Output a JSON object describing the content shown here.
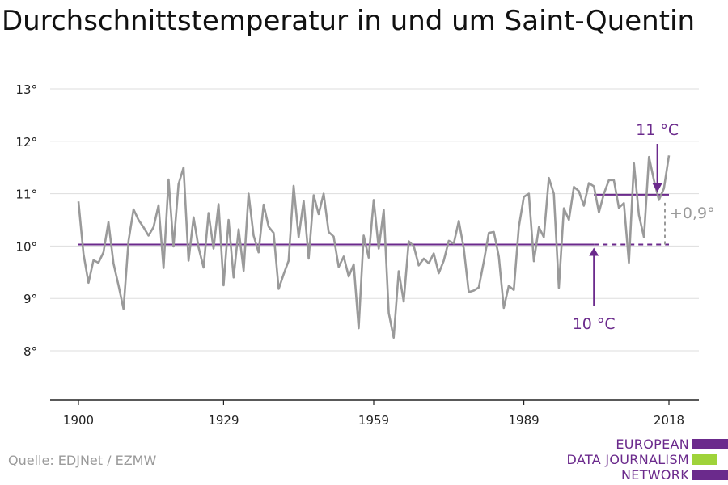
{
  "title": "Durchschnittstemperatur in und um Saint-Quentin",
  "source": "Quelle: EDJNet / EZMW",
  "logo": {
    "line1": "EUROPEAN",
    "line2": "DATA JOURNALISM",
    "line3": "NETWORK"
  },
  "colors": {
    "series": "#9a9a9a",
    "reference": "#6b2a8c",
    "grid": "#dddddd",
    "axis": "#222222",
    "logo_green": "#9fd33a"
  },
  "chart_data": {
    "type": "line",
    "title": "Durchschnittstemperatur in und um Saint-Quentin",
    "xlabel": "",
    "ylabel": "",
    "xlim": [
      1900,
      2018
    ],
    "ylim": [
      7,
      13
    ],
    "xticks": [
      1900,
      1929,
      1959,
      1989,
      2018
    ],
    "yticks": [
      8,
      9,
      10,
      11,
      12,
      13
    ],
    "xtick_labels": [
      "1900",
      "1929",
      "1959",
      "1989",
      "2018"
    ],
    "ytick_labels": [
      "8°",
      "9°",
      "10°",
      "11°",
      "12°",
      "13°"
    ],
    "grid": true,
    "series": [
      {
        "x": [
          1900,
          1901,
          1902,
          1903,
          1904,
          1905,
          1906,
          1907,
          1908,
          1909,
          1910,
          1911,
          1912,
          1913,
          1914,
          1915,
          1916,
          1917,
          1918,
          1919,
          1920,
          1921,
          1922,
          1923,
          1924,
          1925,
          1926,
          1927,
          1928,
          1929,
          1930,
          1931,
          1932,
          1933,
          1934,
          1935,
          1936,
          1937,
          1938,
          1939,
          1940,
          1941,
          1942,
          1943,
          1944,
          1945,
          1946,
          1947,
          1948,
          1949,
          1950,
          1951,
          1952,
          1953,
          1954,
          1955,
          1956,
          1957,
          1958,
          1959,
          1960,
          1961,
          1962,
          1963,
          1964,
          1965,
          1966,
          1967,
          1968,
          1969,
          1970,
          1971,
          1972,
          1973,
          1974,
          1975,
          1976,
          1977,
          1978,
          1979,
          1980,
          1981,
          1982,
          1983,
          1984,
          1985,
          1986,
          1987,
          1988,
          1989,
          1990,
          1991,
          1992,
          1993,
          1994,
          1995,
          1996,
          1997,
          1998,
          1999,
          2000,
          2001,
          2002,
          2003,
          2004,
          2005,
          2006,
          2007,
          2008,
          2009,
          2010,
          2011,
          2012,
          2013,
          2014,
          2015,
          2016,
          2017,
          2018
        ],
        "values": [
          10.85,
          9.85,
          9.3,
          9.73,
          9.68,
          9.88,
          10.46,
          9.67,
          9.25,
          8.8,
          10.1,
          10.7,
          10.5,
          10.36,
          10.2,
          10.36,
          10.78,
          9.58,
          11.27,
          9.99,
          11.18,
          11.5,
          9.72,
          10.55,
          9.97,
          9.59,
          10.63,
          9.95,
          10.8,
          9.25,
          10.5,
          9.4,
          10.32,
          9.53,
          11.0,
          10.2,
          9.88,
          10.79,
          10.37,
          10.25,
          9.18,
          9.46,
          9.72,
          11.15,
          10.17,
          10.86,
          9.76,
          10.97,
          10.61,
          11.0,
          10.27,
          10.18,
          9.6,
          9.8,
          9.42,
          9.65,
          8.43,
          10.2,
          9.78,
          10.88,
          9.95,
          10.69,
          8.72,
          8.25,
          9.52,
          8.94,
          10.09,
          10.0,
          9.63,
          9.76,
          9.67,
          9.86,
          9.48,
          9.72,
          10.1,
          10.05,
          10.48,
          9.95,
          9.12,
          9.15,
          9.21,
          9.7,
          10.25,
          10.27,
          9.8,
          8.82,
          9.24,
          9.16,
          10.36,
          10.94,
          11.0,
          9.71,
          10.36,
          10.17,
          11.3,
          11.0,
          9.2,
          10.72,
          10.5,
          11.13,
          11.05,
          10.77,
          11.2,
          11.14,
          10.64,
          11.0,
          11.26,
          11.26,
          10.73,
          10.82,
          9.68,
          11.58,
          10.59,
          10.17,
          11.7,
          11.26,
          10.88,
          11.1,
          11.73
        ]
      }
    ],
    "reference_lines": [
      {
        "label": "10 °C",
        "value": 10.03,
        "style": "solid-then-dashed"
      },
      {
        "label": "11 °C",
        "value": 10.98,
        "style": "solid"
      }
    ],
    "annotations": [
      {
        "text": "10 °C",
        "arrow_to_year": 2003,
        "arrow_direction": "up"
      },
      {
        "text": "11 °C",
        "arrow_to_year": 2016,
        "arrow_direction": "down"
      },
      {
        "text": "+0,9°",
        "year": 2018
      }
    ]
  }
}
